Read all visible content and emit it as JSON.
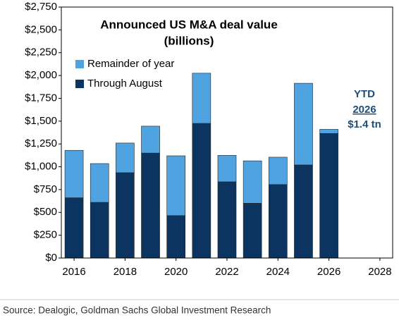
{
  "chart_data": {
    "type": "stacked-bar",
    "title": "Announced US M&A deal value",
    "subtitle": "(billions)",
    "x": [
      2016,
      2017,
      2018,
      2019,
      2020,
      2021,
      2022,
      2023,
      2024,
      2025,
      2026
    ],
    "series": [
      {
        "name": "Through August",
        "color": "#0b3560",
        "values": [
          660,
          610,
          935,
          1150,
          465,
          1475,
          835,
          600,
          805,
          1020,
          1365
        ]
      },
      {
        "name": "Remainder of year",
        "color": "#4fa3e0",
        "values": [
          520,
          425,
          325,
          295,
          655,
          550,
          290,
          465,
          300,
          895,
          45
        ]
      }
    ],
    "xlim": [
      2015.5,
      2028.5
    ],
    "xticks": [
      2016,
      2018,
      2020,
      2022,
      2024,
      2026,
      2028
    ],
    "ylim": [
      0,
      2750
    ],
    "yticks": [
      {
        "value": 0,
        "label": "$0"
      },
      {
        "value": 250,
        "label": "$250"
      },
      {
        "value": 500,
        "label": "$500"
      },
      {
        "value": 750,
        "label": "$750"
      },
      {
        "value": 1000,
        "label": "$1,000"
      },
      {
        "value": 1250,
        "label": "$1,250"
      },
      {
        "value": 1500,
        "label": "$1,500"
      },
      {
        "value": 1750,
        "label": "$1,750"
      },
      {
        "value": 2000,
        "label": "$2,000"
      },
      {
        "value": 2250,
        "label": "$2,250"
      },
      {
        "value": 2500,
        "label": "$2,500"
      },
      {
        "value": 2750,
        "label": "$2,750"
      }
    ],
    "legend": "upper-left",
    "annotations": [
      "YTD",
      "2026",
      "$1.4 tn"
    ],
    "annotation_color": "#1f4e79",
    "source": "Source: Dealogic, Goldman Sachs Global Investment Research"
  }
}
